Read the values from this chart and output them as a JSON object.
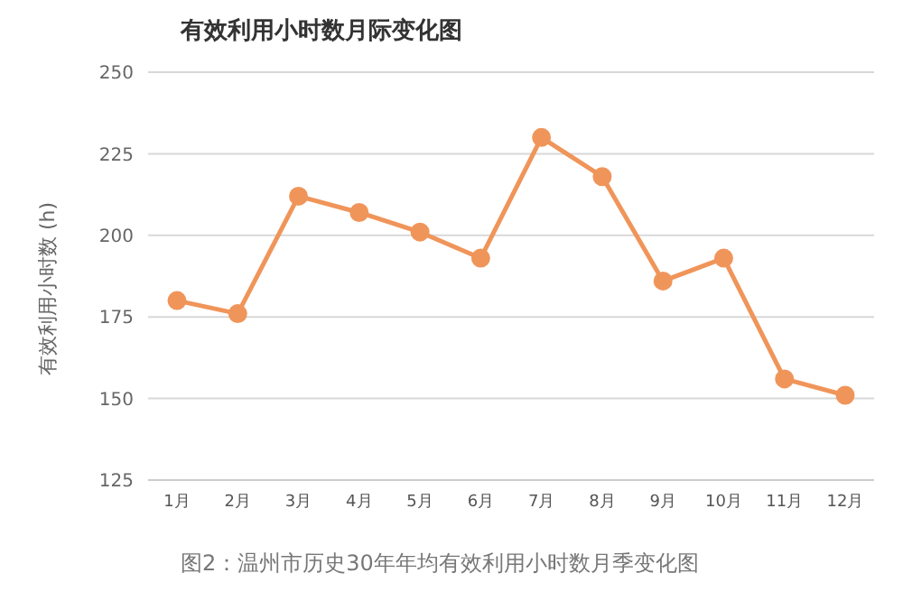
{
  "chart_data": {
    "type": "line",
    "title": "有效利用小时数月际变化图",
    "ylabel": "有效利用小时数 (h)",
    "categories": [
      "1月",
      "2月",
      "3月",
      "4月",
      "5月",
      "6月",
      "7月",
      "8月",
      "9月",
      "10月",
      "11月",
      "12月"
    ],
    "series": [
      {
        "color": "#f0955a",
        "values": [
          180,
          176,
          212,
          207,
          201,
          193,
          230,
          218,
          186,
          193,
          156,
          151
        ]
      }
    ],
    "ylim": [
      125,
      250
    ],
    "yticks": [
      125,
      150,
      175,
      200,
      225,
      250
    ],
    "grid": "y",
    "marker": "circle",
    "line_style": "solid",
    "legend": false,
    "annotations": [
      "图2：温州市历史30年年均有效利用小时数月季变化图"
    ]
  }
}
